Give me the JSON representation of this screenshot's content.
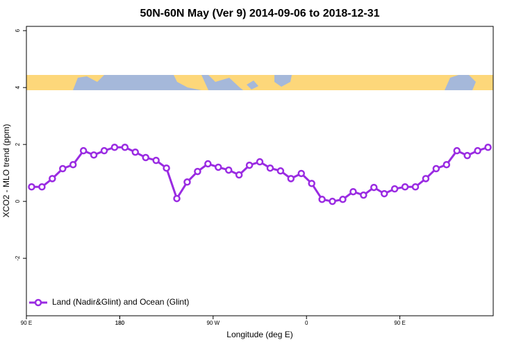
{
  "chart_data": {
    "type": "line",
    "title": "50N-60N May (Ver 9)   2014-09-06 to 2018-12-31",
    "x_label": "Longitude (deg E)",
    "y_label": "XCO2 - MLO trend (ppm)",
    "x": [
      95,
      105,
      115,
      125,
      135,
      145,
      155,
      165,
      175,
      185,
      195,
      205,
      215,
      225,
      235,
      245,
      255,
      265,
      275,
      285,
      295,
      305,
      315,
      325,
      335,
      345,
      355,
      365,
      375,
      385,
      395,
      405,
      415,
      425,
      435,
      445,
      455,
      465,
      475,
      485,
      495,
      505,
      515,
      525,
      535
    ],
    "series": [
      {
        "name": "Land (Nadir&Glint) and Ocean (Glint)",
        "color": "#9a2be2",
        "values": [
          0.51,
          0.51,
          0.8,
          1.15,
          1.29,
          1.78,
          1.63,
          1.78,
          1.9,
          1.9,
          1.73,
          1.54,
          1.44,
          1.17,
          0.1,
          0.68,
          1.05,
          1.32,
          1.2,
          1.1,
          0.93,
          1.27,
          1.39,
          1.17,
          1.07,
          0.8,
          0.98,
          0.63,
          0.07,
          0.0,
          0.07,
          0.34,
          0.22,
          0.49,
          0.27,
          0.44,
          0.51,
          0.51,
          0.8,
          1.15,
          1.29,
          1.78,
          1.61,
          1.78,
          1.9
        ]
      }
    ],
    "xlim": [
      90,
      540
    ],
    "xticks": [
      {
        "value": 90,
        "label": "90 E"
      },
      180,
      {
        "value": 270,
        "label": "90 W"
      },
      {
        "value": 360,
        "label": "0"
      },
      {
        "value": 450,
        "label": "90 E"
      },
      180.0001
    ],
    "ylim": [
      -4.02,
      6.15
    ],
    "yticks": [
      -2,
      0,
      2,
      4,
      6
    ],
    "legend": "bottomleft"
  }
}
